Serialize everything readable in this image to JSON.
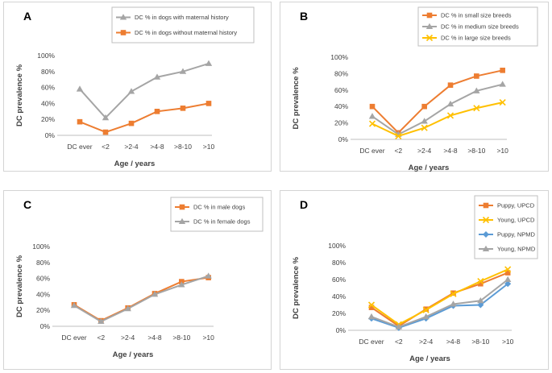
{
  "chart_data": [
    {
      "panel": "A",
      "type": "line",
      "categories": [
        "DC ever",
        "<2",
        ">2-4",
        ">4-8",
        ">8-10",
        ">10"
      ],
      "xlabel": "Age / years",
      "ylabel": "DC prevalence %",
      "yticks": [
        "0%",
        "20%",
        "40%",
        "60%",
        "80%",
        "100%"
      ],
      "ylim": [
        0,
        100
      ],
      "legend_position": "top-right",
      "series": [
        {
          "name": "DC % in dogs with maternal history",
          "color": "#a5a5a5",
          "marker": "triangle",
          "values": [
            58,
            22,
            55,
            73,
            80,
            90
          ]
        },
        {
          "name": "DC % in dogs without maternal history",
          "color": "#ed7d31",
          "marker": "square",
          "values": [
            17,
            4,
            15,
            30,
            34,
            40
          ]
        }
      ]
    },
    {
      "panel": "B",
      "type": "line",
      "categories": [
        "DC ever",
        "<2",
        ">2-4",
        ">4-8",
        ">8-10",
        ">10"
      ],
      "xlabel": "Age / years",
      "ylabel": "DC prevalence %",
      "yticks": [
        "0%",
        "20%",
        "40%",
        "60%",
        "80%",
        "100%"
      ],
      "ylim": [
        0,
        100
      ],
      "legend_position": "top-left",
      "series": [
        {
          "name": "DC % in small size breeds",
          "color": "#ed7d31",
          "marker": "square",
          "values": [
            40,
            8,
            40,
            66,
            77,
            84
          ]
        },
        {
          "name": "DC % in medium size breeds",
          "color": "#a5a5a5",
          "marker": "triangle",
          "values": [
            28,
            6,
            22,
            43,
            59,
            67
          ]
        },
        {
          "name": "DC % in large size breeds",
          "color": "#ffc000",
          "marker": "x",
          "values": [
            19,
            4,
            14,
            29,
            38,
            45
          ]
        }
      ]
    },
    {
      "panel": "C",
      "type": "line",
      "categories": [
        "DC ever",
        "<2",
        ">2-4",
        ">4-8",
        ">8-10",
        ">10"
      ],
      "xlabel": "Age / years",
      "ylabel": "DC prevalence %",
      "yticks": [
        "0%",
        "20%",
        "40%",
        "60%",
        "80%",
        "100%"
      ],
      "ylim": [
        0,
        100
      ],
      "legend_position": "top-right",
      "series": [
        {
          "name": "DC % in male dogs",
          "color": "#ed7d31",
          "marker": "square",
          "values": [
            27,
            7,
            23,
            41,
            56,
            61
          ]
        },
        {
          "name": "DC % in female dogs",
          "color": "#a5a5a5",
          "marker": "triangle",
          "values": [
            26,
            6,
            22,
            40,
            52,
            63
          ]
        }
      ]
    },
    {
      "panel": "D",
      "type": "line",
      "categories": [
        "DC ever",
        "<2",
        ">2-4",
        ">4-8",
        ">8-10",
        ">10"
      ],
      "xlabel": "Age / years",
      "ylabel": "DC prevalence %",
      "yticks": [
        "0%",
        "20%",
        "40%",
        "60%",
        "80%",
        "100%"
      ],
      "ylim": [
        0,
        100
      ],
      "legend_position": "top-right",
      "series": [
        {
          "name": "Puppy, UPCD",
          "color": "#ed7d31",
          "marker": "square",
          "values": [
            27,
            5,
            25,
            44,
            55,
            68
          ]
        },
        {
          "name": "Young, UPCD",
          "color": "#ffc000",
          "marker": "x",
          "values": [
            30,
            7,
            24,
            43,
            58,
            72
          ]
        },
        {
          "name": "Puppy, NPMD",
          "color": "#5b9bd5",
          "marker": "diamond",
          "values": [
            14,
            3,
            14,
            29,
            30,
            55
          ]
        },
        {
          "name": "Young, NPMD",
          "color": "#a5a5a5",
          "marker": "triangle",
          "values": [
            16,
            4,
            16,
            31,
            35,
            60
          ]
        }
      ]
    }
  ]
}
